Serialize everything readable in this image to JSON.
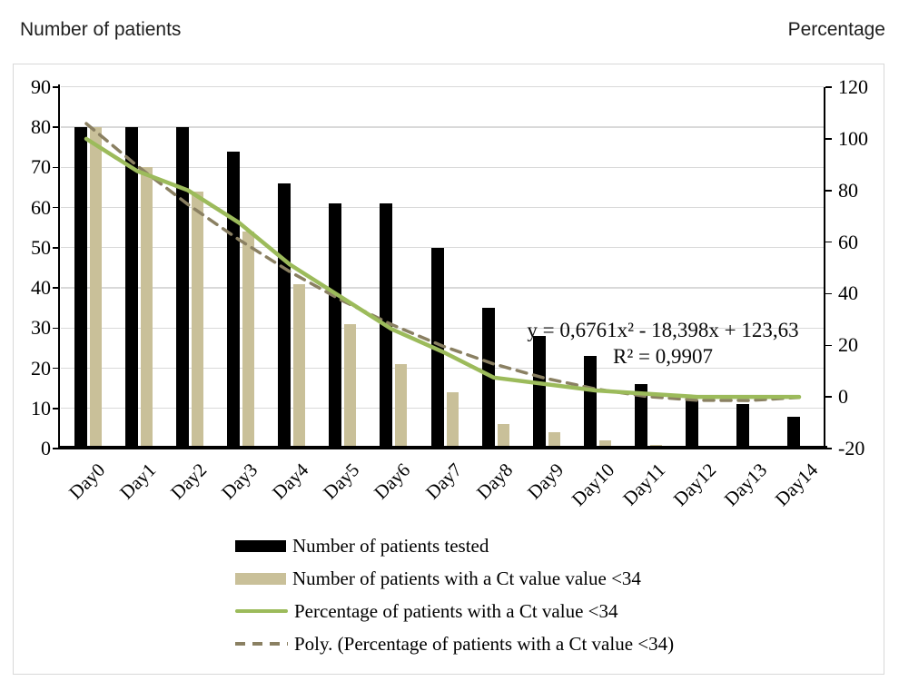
{
  "chart_data": {
    "type": "combo (grouped bars + lines, dual axis)",
    "categories": [
      "Day0",
      "Day1",
      "Day2",
      "Day3",
      "Day4",
      "Day5",
      "Day6",
      "Day7",
      "Day8",
      "Day9",
      "Day10",
      "Day11",
      "Day12",
      "Day13",
      "Day14"
    ],
    "series": [
      {
        "name": "Number of patients tested",
        "type": "bar",
        "axis": "left",
        "color": "#000000",
        "values": [
          80,
          80,
          80,
          74,
          66,
          61,
          61,
          50,
          35,
          28,
          23,
          16,
          12,
          11,
          8
        ]
      },
      {
        "name": "Number of patients with a Ct value value <34",
        "type": "bar",
        "axis": "left",
        "color": "#c9c099",
        "values": [
          80,
          70,
          64,
          54,
          41,
          31,
          21,
          14,
          6,
          4,
          2,
          1,
          0,
          0,
          0
        ]
      },
      {
        "name": "Percentage of patients with a Ct value <34",
        "type": "line",
        "axis": "right",
        "color": "#9cbb5b",
        "values": [
          100,
          87.5,
          80,
          67.5,
          51.25,
          38.75,
          26.25,
          17.5,
          7.5,
          5,
          2.5,
          1.25,
          0,
          0,
          0
        ]
      },
      {
        "name": "Poly. (Percentage of patients with a Ct value <34)",
        "type": "line-dashed",
        "axis": "right",
        "color": "#8a8062",
        "values": [
          105.9,
          89.5,
          74.5,
          60.9,
          48.5,
          37.6,
          28.0,
          19.7,
          12.8,
          7.3,
          3.1,
          0.2,
          -1.3,
          -1.4,
          -0.2
        ]
      }
    ],
    "left_axis": {
      "title": "Number of patients",
      "min": 0,
      "max": 90,
      "step": 10
    },
    "right_axis": {
      "title": "Percentage",
      "min": -20,
      "max": 120,
      "step": 20
    },
    "annotation": {
      "equation": "y = 0,6761x² - 18,398x + 123,63",
      "r_squared": "R² = 0,9907"
    },
    "legend_position": "bottom-center",
    "grid": "horizontal"
  },
  "colors": {
    "bar_tested": "#000000",
    "bar_ct34": "#c9c099",
    "line_percentage": "#9cbb5b",
    "line_poly": "#8a8062",
    "gridline": "#d9d9d9",
    "frame_border": "#d8d8d8"
  }
}
